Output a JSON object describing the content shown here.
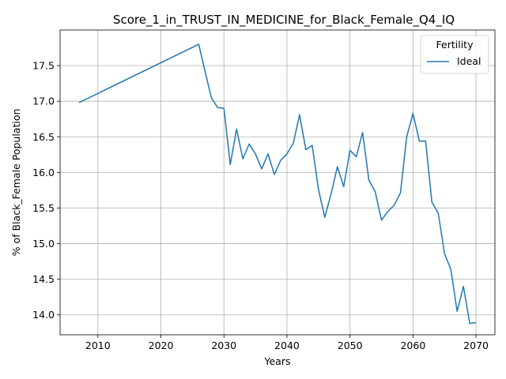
{
  "chart_data": {
    "type": "line",
    "title": "Score_1_in_TRUST_IN_MEDICINE_for_Black_Female_Q4_IQ",
    "xlabel": "Years",
    "ylabel": "% of Black_Female Population",
    "xlim": [
      2004,
      2073
    ],
    "ylim": [
      13.72,
      18.0
    ],
    "xticks": [
      2010,
      2020,
      2030,
      2040,
      2050,
      2060,
      2070
    ],
    "yticks": [
      14.0,
      14.5,
      15.0,
      15.5,
      16.0,
      16.5,
      17.0,
      17.5
    ],
    "grid": true,
    "legend": {
      "title": "Fertility",
      "placement": "top-right"
    },
    "series": [
      {
        "name": "Ideal",
        "color": "#1f77b4",
        "x": [
          2007,
          2026,
          2027,
          2028,
          2029,
          2030,
          2031,
          2032,
          2033,
          2034,
          2035,
          2036,
          2037,
          2038,
          2039,
          2040,
          2041,
          2042,
          2043,
          2044,
          2045,
          2046,
          2047,
          2048,
          2049,
          2050,
          2051,
          2052,
          2053,
          2054,
          2055,
          2056,
          2057,
          2058,
          2059,
          2060,
          2061,
          2062,
          2063,
          2064,
          2065,
          2066,
          2067,
          2068,
          2069,
          2070
        ],
        "values": [
          16.98,
          17.8,
          17.42,
          17.05,
          16.91,
          16.9,
          16.11,
          16.61,
          16.19,
          16.4,
          16.26,
          16.05,
          16.26,
          15.97,
          16.17,
          16.26,
          16.41,
          16.81,
          16.32,
          16.38,
          15.76,
          15.37,
          15.7,
          16.08,
          15.8,
          16.31,
          16.22,
          16.56,
          15.89,
          15.73,
          15.33,
          15.45,
          15.54,
          15.71,
          16.5,
          16.83,
          16.44,
          16.44,
          15.58,
          15.43,
          14.86,
          14.64,
          14.05,
          14.4,
          13.88,
          13.89
        ]
      }
    ]
  }
}
